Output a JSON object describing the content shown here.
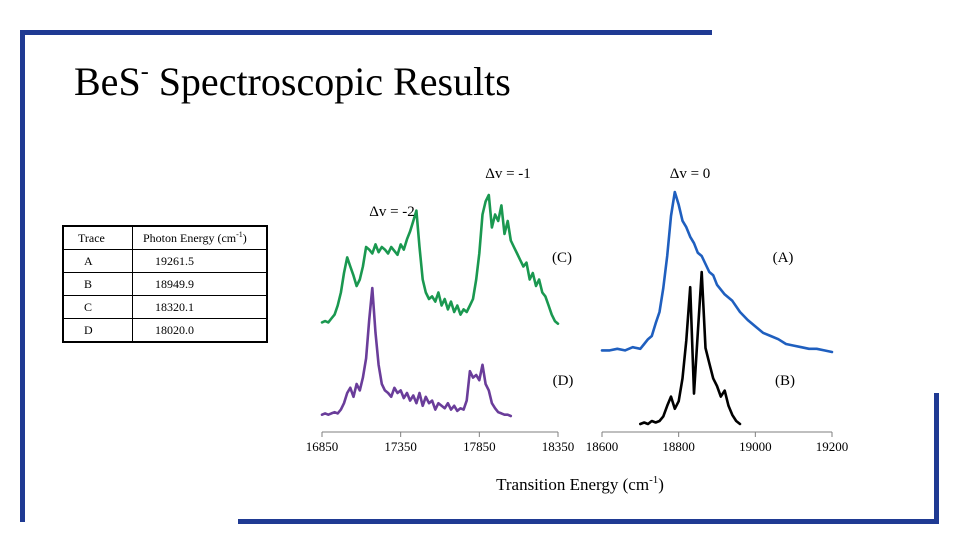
{
  "title": {
    "main": "Be",
    "element": "S",
    "superscript": "-",
    "rest": " Spectroscopic Results"
  },
  "table": {
    "headers": [
      "Trace",
      "Photon Energy (cm",
      "-1",
      ")"
    ],
    "rows": [
      {
        "trace": "A",
        "energy": "19261.5"
      },
      {
        "trace": "B",
        "energy": "18949.9"
      },
      {
        "trace": "C",
        "energy": "18320.1"
      },
      {
        "trace": "D",
        "energy": "18020.0"
      }
    ]
  },
  "chart_data": {
    "type": "line",
    "xlabel": "Transition Energy (cm",
    "xlabel_sup": "-1",
    "xlabel_end": ")",
    "colors": {
      "A": "#1f5fbf",
      "B": "#000000",
      "C": "#1a9850",
      "D": "#6a3d9a"
    },
    "annotations": [
      {
        "text": "Δv = -1",
        "key": "dv_minus1"
      },
      {
        "text": "Δv = 0",
        "key": "dv_0"
      },
      {
        "text": "Δv = -2",
        "key": "dv_minus2"
      },
      {
        "text": "(C)",
        "key": "label_C"
      },
      {
        "text": "(A)",
        "key": "label_A"
      },
      {
        "text": "(D)",
        "key": "label_D"
      },
      {
        "text": "(B)",
        "key": "label_B"
      }
    ],
    "panels": [
      {
        "name": "left",
        "xlim": [
          16850,
          18350
        ],
        "xticks": [
          16850,
          17350,
          17850,
          18350
        ],
        "series": [
          {
            "name": "C",
            "x": [
              16850,
              16870,
              16890,
              16910,
              16930,
              16950,
              16970,
              16990,
              17010,
              17030,
              17050,
              17070,
              17090,
              17110,
              17130,
              17150,
              17170,
              17190,
              17210,
              17230,
              17250,
              17270,
              17290,
              17310,
              17330,
              17350,
              17370,
              17390,
              17410,
              17430,
              17450,
              17470,
              17490,
              17510,
              17530,
              17550,
              17570,
              17590,
              17610,
              17630,
              17650,
              17670,
              17690,
              17710,
              17730,
              17750,
              17770,
              17790,
              17810,
              17830,
              17850,
              17870,
              17890,
              17910,
              17930,
              17950,
              17970,
              17990,
              18010,
              18030,
              18050,
              18070,
              18090,
              18110,
              18130,
              18150,
              18170,
              18190,
              18210,
              18230,
              18250,
              18270,
              18290,
              18310,
              18330,
              18350
            ],
            "y": [
              0.02,
              0.03,
              0.02,
              0.05,
              0.08,
              0.15,
              0.25,
              0.4,
              0.52,
              0.45,
              0.38,
              0.3,
              0.35,
              0.45,
              0.6,
              0.58,
              0.55,
              0.62,
              0.56,
              0.6,
              0.58,
              0.55,
              0.6,
              0.57,
              0.54,
              0.62,
              0.58,
              0.66,
              0.72,
              0.8,
              0.88,
              0.6,
              0.35,
              0.25,
              0.2,
              0.22,
              0.18,
              0.25,
              0.15,
              0.2,
              0.12,
              0.18,
              0.1,
              0.15,
              0.08,
              0.12,
              0.1,
              0.15,
              0.2,
              0.35,
              0.55,
              0.85,
              0.95,
              1.0,
              0.75,
              0.85,
              0.8,
              0.92,
              0.7,
              0.8,
              0.65,
              0.6,
              0.55,
              0.5,
              0.45,
              0.48,
              0.35,
              0.4,
              0.3,
              0.35,
              0.25,
              0.22,
              0.15,
              0.08,
              0.03,
              0.01
            ]
          },
          {
            "name": "D",
            "x": [
              16850,
              16870,
              16890,
              16910,
              16930,
              16950,
              16970,
              16990,
              17010,
              17030,
              17050,
              17070,
              17090,
              17110,
              17130,
              17150,
              17170,
              17190,
              17210,
              17230,
              17250,
              17270,
              17290,
              17310,
              17330,
              17350,
              17370,
              17390,
              17410,
              17430,
              17450,
              17470,
              17490,
              17510,
              17530,
              17550,
              17570,
              17590,
              17610,
              17630,
              17650,
              17670,
              17690,
              17710,
              17730,
              17750,
              17770,
              17790,
              17810,
              17830,
              17850,
              17870,
              17890,
              17910,
              17930,
              17950,
              17970,
              17990,
              18010,
              18030,
              18050
            ],
            "y": [
              0.01,
              0.02,
              0.01,
              0.02,
              0.03,
              0.02,
              0.05,
              0.1,
              0.18,
              0.22,
              0.15,
              0.25,
              0.2,
              0.3,
              0.45,
              0.75,
              1.0,
              0.65,
              0.4,
              0.25,
              0.2,
              0.18,
              0.15,
              0.22,
              0.18,
              0.2,
              0.14,
              0.18,
              0.12,
              0.16,
              0.1,
              0.18,
              0.08,
              0.15,
              0.1,
              0.12,
              0.05,
              0.1,
              0.08,
              0.06,
              0.1,
              0.05,
              0.08,
              0.04,
              0.06,
              0.05,
              0.12,
              0.35,
              0.3,
              0.32,
              0.28,
              0.4,
              0.25,
              0.2,
              0.1,
              0.06,
              0.03,
              0.02,
              0.01,
              0.01,
              0.0
            ]
          }
        ]
      },
      {
        "name": "right",
        "xlim": [
          18600,
          19200
        ],
        "xticks": [
          18600,
          18800,
          19000,
          19200
        ],
        "series": [
          {
            "name": "A",
            "x": [
              18600,
              18620,
              18640,
              18660,
              18680,
              18700,
              18710,
              18720,
              18730,
              18740,
              18750,
              18760,
              18770,
              18780,
              18790,
              18800,
              18810,
              18820,
              18830,
              18840,
              18850,
              18860,
              18870,
              18880,
              18890,
              18900,
              18920,
              18940,
              18960,
              18980,
              19000,
              19020,
              19040,
              19060,
              19080,
              19100,
              19120,
              19140,
              19160,
              19180,
              19200
            ],
            "y": [
              0.01,
              0.01,
              0.02,
              0.01,
              0.03,
              0.02,
              0.05,
              0.08,
              0.1,
              0.18,
              0.25,
              0.4,
              0.6,
              0.85,
              1.0,
              0.92,
              0.82,
              0.78,
              0.72,
              0.68,
              0.62,
              0.6,
              0.55,
              0.5,
              0.48,
              0.42,
              0.36,
              0.32,
              0.25,
              0.2,
              0.16,
              0.12,
              0.1,
              0.08,
              0.05,
              0.04,
              0.03,
              0.02,
              0.02,
              0.01,
              0.0
            ]
          },
          {
            "name": "B",
            "x": [
              18700,
              18710,
              18720,
              18730,
              18740,
              18750,
              18760,
              18770,
              18780,
              18790,
              18800,
              18810,
              18820,
              18830,
              18840,
              18850,
              18860,
              18870,
              18880,
              18890,
              18900,
              18910,
              18920,
              18930,
              18940,
              18950,
              18960
            ],
            "y": [
              0.0,
              0.01,
              0.0,
              0.02,
              0.01,
              0.02,
              0.05,
              0.12,
              0.18,
              0.1,
              0.15,
              0.3,
              0.55,
              0.9,
              0.2,
              0.6,
              1.0,
              0.5,
              0.4,
              0.3,
              0.25,
              0.18,
              0.22,
              0.12,
              0.06,
              0.02,
              0.0
            ]
          }
        ]
      }
    ]
  }
}
